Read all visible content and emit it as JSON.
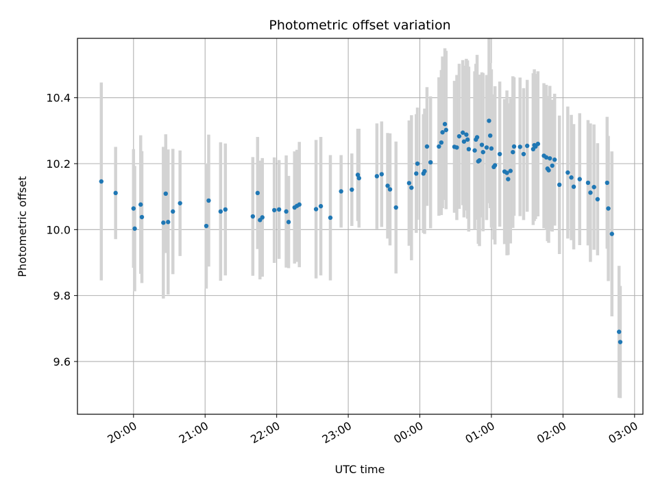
{
  "chart_data": {
    "type": "scatter",
    "title": "Photometric offset variation",
    "xlabel": "UTC time",
    "ylabel": "Photometric offset",
    "x_ticks": [
      "20:00",
      "21:00",
      "22:00",
      "23:00",
      "00:00",
      "01:00",
      "02:00",
      "03:00"
    ],
    "y_ticks": [
      "9.6",
      "9.8",
      "10.0",
      "10.2",
      "10.4"
    ],
    "xlim": [
      "19:13",
      "03:07"
    ],
    "ylim": [
      9.44,
      10.58
    ],
    "grid": true,
    "colors": {
      "point": "#1f77b4",
      "errorbar": "#d3d3d3",
      "grid": "#b0b0b0"
    },
    "series": [
      {
        "points": [
          [
            "19:33",
            10.146,
            0.3
          ],
          [
            "19:45",
            10.111,
            0.14
          ],
          [
            "20:00",
            10.064,
            0.18
          ],
          [
            "20:01",
            10.003,
            0.19
          ],
          [
            "20:06",
            10.076,
            0.21
          ],
          [
            "20:07",
            10.038,
            0.2
          ],
          [
            "20:25",
            10.021,
            0.23
          ],
          [
            "20:27",
            10.109,
            0.18
          ],
          [
            "20:29",
            10.023,
            0.22
          ],
          [
            "20:33",
            10.055,
            0.19
          ],
          [
            "20:39",
            10.08,
            0.16
          ],
          [
            "21:01",
            10.011,
            0.19
          ],
          [
            "21:03",
            10.088,
            0.2
          ],
          [
            "21:13",
            10.055,
            0.21
          ],
          [
            "21:17",
            10.061,
            0.2
          ],
          [
            "21:40",
            10.04,
            0.18
          ],
          [
            "21:44",
            10.111,
            0.17
          ],
          [
            "21:46",
            10.029,
            0.18
          ],
          [
            "21:48",
            10.037,
            0.18
          ],
          [
            "21:58",
            10.059,
            0.16
          ],
          [
            "22:02",
            10.061,
            0.15
          ],
          [
            "22:08",
            10.055,
            0.17
          ],
          [
            "22:10",
            10.023,
            0.14
          ],
          [
            "22:15",
            10.067,
            0.17
          ],
          [
            "22:17",
            10.072,
            0.17
          ],
          [
            "22:19",
            10.076,
            0.19
          ],
          [
            "22:33",
            10.062,
            0.21
          ],
          [
            "22:37",
            10.071,
            0.21
          ],
          [
            "22:45",
            10.036,
            0.19
          ],
          [
            "22:54",
            10.116,
            0.11
          ],
          [
            "23:03",
            10.121,
            0.11
          ],
          [
            "23:08",
            10.166,
            0.14
          ],
          [
            "23:09",
            10.156,
            0.15
          ],
          [
            "23:24",
            10.162,
            0.16
          ],
          [
            "23:28",
            10.168,
            0.16
          ],
          [
            "23:33",
            10.133,
            0.16
          ],
          [
            "23:35",
            10.122,
            0.17
          ],
          [
            "23:40",
            10.067,
            0.2
          ],
          [
            "23:51",
            10.141,
            0.19
          ],
          [
            "23:53",
            10.127,
            0.22
          ],
          [
            "23:57",
            10.17,
            0.18
          ],
          [
            "23:58",
            10.2,
            0.17
          ],
          [
            "00:03",
            10.17,
            0.18
          ],
          [
            "00:04",
            10.177,
            0.19
          ],
          [
            "00:06",
            10.252,
            0.18
          ],
          [
            "00:09",
            10.204,
            0.2
          ],
          [
            "00:16",
            10.252,
            0.21
          ],
          [
            "00:18",
            10.264,
            0.22
          ],
          [
            "00:19",
            10.295,
            0.23
          ],
          [
            "00:21",
            10.32,
            0.23
          ],
          [
            "00:22",
            10.302,
            0.24
          ],
          [
            "00:29",
            10.251,
            0.2
          ],
          [
            "00:31",
            10.249,
            0.22
          ],
          [
            "00:33",
            10.283,
            0.22
          ],
          [
            "00:36",
            10.294,
            0.22
          ],
          [
            "00:37",
            10.267,
            0.23
          ],
          [
            "00:39",
            10.288,
            0.23
          ],
          [
            "00:40",
            10.273,
            0.24
          ],
          [
            "00:41",
            10.244,
            0.25
          ],
          [
            "00:46",
            10.24,
            0.24
          ],
          [
            "00:47",
            10.273,
            0.23
          ],
          [
            "00:48",
            10.28,
            0.25
          ],
          [
            "00:49",
            10.207,
            0.25
          ],
          [
            "00:50",
            10.21,
            0.26
          ],
          [
            "00:52",
            10.257,
            0.22
          ],
          [
            "00:53",
            10.235,
            0.24
          ],
          [
            "00:56",
            10.249,
            0.22
          ],
          [
            "00:58",
            10.33,
            0.25
          ],
          [
            "00:59",
            10.285,
            0.22
          ],
          [
            "01:00",
            10.246,
            0.24
          ],
          [
            "01:02",
            10.19,
            0.22
          ],
          [
            "01:03",
            10.195,
            0.24
          ],
          [
            "01:07",
            10.229,
            0.22
          ],
          [
            "01:11",
            10.176,
            0.22
          ],
          [
            "01:13",
            10.172,
            0.25
          ],
          [
            "01:14",
            10.153,
            0.23
          ],
          [
            "01:16",
            10.178,
            0.22
          ],
          [
            "01:18",
            10.235,
            0.23
          ],
          [
            "01:19",
            10.252,
            0.21
          ],
          [
            "01:24",
            10.251,
            0.21
          ],
          [
            "01:27",
            10.229,
            0.2
          ],
          [
            "01:30",
            10.254,
            0.2
          ],
          [
            "01:35",
            10.244,
            0.23
          ],
          [
            "01:36",
            10.256,
            0.23
          ],
          [
            "01:37",
            10.252,
            0.22
          ],
          [
            "01:39",
            10.26,
            0.22
          ],
          [
            "01:44",
            10.224,
            0.22
          ],
          [
            "01:46",
            10.219,
            0.22
          ],
          [
            "01:47",
            10.185,
            0.22
          ],
          [
            "01:48",
            10.18,
            0.22
          ],
          [
            "01:49",
            10.216,
            0.22
          ],
          [
            "01:51",
            10.194,
            0.2
          ],
          [
            "01:53",
            10.212,
            0.2
          ],
          [
            "01:57",
            10.136,
            0.21
          ],
          [
            "02:04",
            10.173,
            0.2
          ],
          [
            "02:07",
            10.158,
            0.19
          ],
          [
            "02:09",
            10.13,
            0.19
          ],
          [
            "02:14",
            10.153,
            0.2
          ],
          [
            "02:21",
            10.142,
            0.19
          ],
          [
            "02:23",
            10.112,
            0.21
          ],
          [
            "02:26",
            10.129,
            0.19
          ],
          [
            "02:29",
            10.092,
            0.17
          ],
          [
            "02:37",
            10.142,
            0.2
          ],
          [
            "02:38",
            10.064,
            0.22
          ],
          [
            "02:41",
            9.987,
            0.25
          ],
          [
            "02:47",
            9.69,
            0.2
          ],
          [
            "02:48",
            9.659,
            0.17
          ]
        ]
      }
    ]
  }
}
